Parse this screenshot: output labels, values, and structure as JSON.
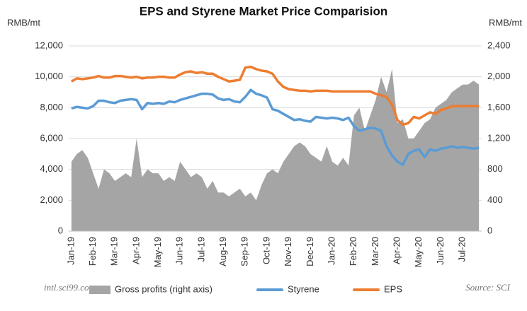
{
  "chart_data": {
    "type": "combo",
    "title": "EPS and Styrene Market Price Comparision",
    "y_label": "RMB/mt",
    "y2_label": "RMB/mt",
    "annotations": [
      "intl.sci99.com",
      "Source: SCI"
    ],
    "categories": [
      "Jan-19",
      null,
      null,
      null,
      "Feb-19",
      null,
      null,
      null,
      "Mar-19",
      null,
      null,
      null,
      "Apr-19",
      null,
      null,
      null,
      "May-19",
      null,
      null,
      null,
      "Jun-19",
      null,
      null,
      null,
      "Jul-19",
      null,
      null,
      null,
      "Aug-19",
      null,
      null,
      null,
      "Sep-19",
      null,
      null,
      null,
      "Oct-19",
      null,
      null,
      null,
      "Nov-19",
      null,
      null,
      null,
      "Dec-19",
      null,
      null,
      null,
      "Jan-20",
      null,
      null,
      null,
      "Feb-20",
      null,
      null,
      null,
      "Mar-20",
      null,
      null,
      null,
      "Apr-20",
      null,
      null,
      null,
      "May-20",
      null,
      null,
      null,
      "Jun-20",
      null,
      null,
      null,
      "Jul-20",
      null,
      null,
      null
    ],
    "series": [
      {
        "name": "Gross profits (right axis)",
        "type": "area",
        "axis": "y2",
        "color": "#a5a5a5",
        "values": [
          900,
          1000,
          1050,
          950,
          750,
          550,
          800,
          750,
          650,
          700,
          750,
          700,
          1200,
          700,
          800,
          750,
          750,
          650,
          700,
          650,
          900,
          800,
          700,
          750,
          700,
          550,
          650,
          500,
          500,
          450,
          500,
          550,
          450,
          500,
          400,
          600,
          750,
          800,
          750,
          900,
          1000,
          1100,
          1150,
          1100,
          1000,
          950,
          900,
          1100,
          900,
          850,
          950,
          850,
          1500,
          1600,
          1300,
          1500,
          1700,
          2000,
          1800,
          2100,
          1400,
          1450,
          1200,
          1200,
          1300,
          1400,
          1450,
          1600,
          1650,
          1700,
          1800,
          1850,
          1900,
          1900,
          1950,
          1900
        ]
      },
      {
        "name": "Styrene",
        "type": "line",
        "color": "#5b9bd5",
        "values": [
          7950,
          8050,
          8000,
          7950,
          8100,
          8450,
          8450,
          8350,
          8300,
          8450,
          8500,
          8550,
          8500,
          7900,
          8300,
          8250,
          8300,
          8250,
          8400,
          8350,
          8500,
          8600,
          8700,
          8800,
          8900,
          8900,
          8850,
          8600,
          8500,
          8550,
          8400,
          8350,
          8700,
          9150,
          8900,
          8800,
          8650,
          7900,
          7800,
          7600,
          7400,
          7200,
          7250,
          7150,
          7100,
          7400,
          7350,
          7300,
          7350,
          7300,
          7200,
          7350,
          6800,
          6500,
          6600,
          6700,
          6650,
          6500,
          5500,
          4900,
          4500,
          4300,
          5000,
          5200,
          5300,
          4800,
          5300,
          5200,
          5350,
          5400,
          5500,
          5400,
          5450,
          5400,
          5350,
          5400
        ]
      },
      {
        "name": "EPS",
        "type": "line",
        "color": "#ed7d31",
        "values": [
          9700,
          9900,
          9850,
          9900,
          9950,
          10050,
          9950,
          9950,
          10050,
          10050,
          10000,
          9950,
          10000,
          9900,
          9950,
          9950,
          10000,
          10000,
          9950,
          9950,
          10150,
          10300,
          10350,
          10250,
          10300,
          10200,
          10200,
          10000,
          9850,
          9700,
          9750,
          9800,
          10600,
          10650,
          10500,
          10400,
          10350,
          10200,
          9700,
          9350,
          9200,
          9150,
          9100,
          9100,
          9050,
          9100,
          9100,
          9100,
          9050,
          9050,
          9050,
          9050,
          9050,
          9050,
          9050,
          9050,
          8900,
          8800,
          8700,
          8200,
          7200,
          6900,
          7000,
          7400,
          7300,
          7500,
          7700,
          7600,
          7850,
          7950,
          8100,
          8100,
          8100,
          8100,
          8100,
          8100
        ]
      }
    ],
    "ylim": [
      0,
      12000
    ],
    "yticks": [
      0,
      {
        "value": 2000,
        "label": "2,000"
      },
      {
        "value": 4000,
        "label": "4,000"
      },
      {
        "value": 6000,
        "label": "6,000"
      },
      {
        "value": 8000,
        "label": "8,000"
      },
      {
        "value": 10000,
        "label": "10,000"
      },
      {
        "value": 12000,
        "label": "12,000"
      }
    ],
    "y2lim": [
      0,
      2400
    ],
    "y2ticks": [
      0,
      400,
      800,
      {
        "value": 1200,
        "label": "1,200"
      },
      {
        "value": 1600,
        "label": "1,600"
      },
      {
        "value": 2000,
        "label": "2,000"
      },
      {
        "value": 2400,
        "label": "2,400"
      }
    ],
    "grid": true,
    "legend": "bottom"
  }
}
